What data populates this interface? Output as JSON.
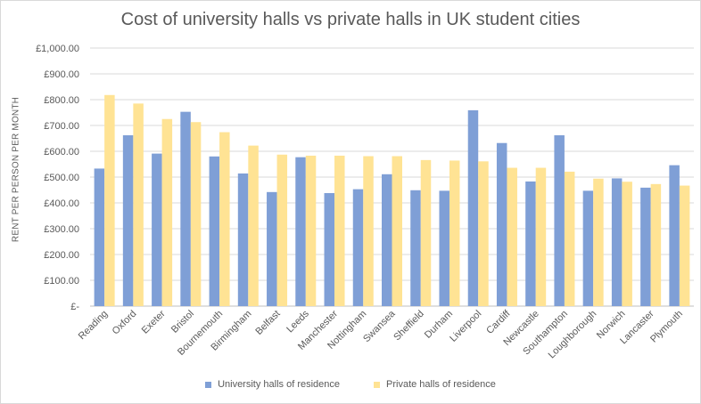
{
  "chart_data": {
    "type": "bar",
    "title": "Cost of university halls vs private halls in UK student cities",
    "xlabel": "",
    "ylabel": "RENT PER PERSON PER MONTH",
    "ylim": [
      0,
      1000
    ],
    "y_ticks": [
      "£-",
      "£100.00",
      "£200.00",
      "£300.00",
      "£400.00",
      "£500.00",
      "£600.00",
      "£700.00",
      "£800.00",
      "£900.00",
      "£1,000.00"
    ],
    "grid": true,
    "legend_position": "bottom",
    "categories": [
      "Reading",
      "Oxford",
      "Exeter",
      "Bristol",
      "Bournemouth",
      "Birmingham",
      "Belfast",
      "Leeds",
      "Manchester",
      "Nottingham",
      "Swansea",
      "Sheffield",
      "Durham",
      "Liverpool",
      "Cardiff",
      "Newcastle",
      "Southampton",
      "Loughborough",
      "Norwich",
      "Lancaster",
      "Plymouth"
    ],
    "series": [
      {
        "name": "University halls of residence",
        "color": "#7f9fd6",
        "values": [
          533,
          662,
          591,
          753,
          580,
          514,
          442,
          577,
          438,
          453,
          511,
          449,
          447,
          759,
          632,
          483,
          662,
          447,
          495,
          459,
          546
        ]
      },
      {
        "name": "Private halls of residence",
        "color": "#ffe394",
        "values": [
          818,
          785,
          725,
          713,
          674,
          622,
          587,
          583,
          583,
          581,
          581,
          566,
          564,
          561,
          536,
          536,
          521,
          494,
          482,
          473,
          467
        ]
      }
    ]
  }
}
